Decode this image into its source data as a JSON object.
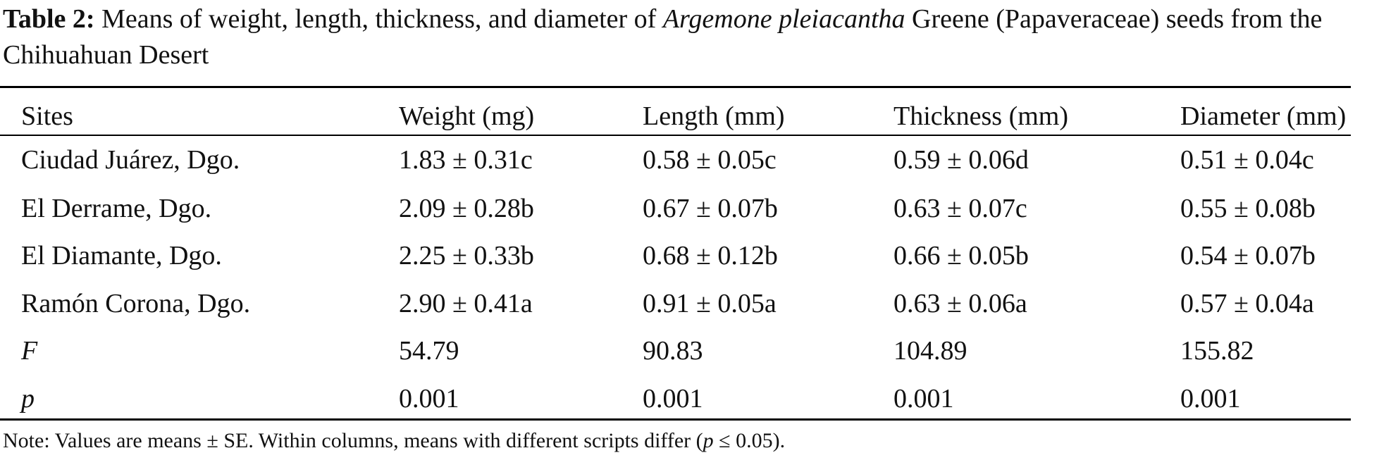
{
  "caption": {
    "label": "Table 2:",
    "text_before": "Means of weight, length, thickness, and diameter of",
    "species": "Argemone pleiacantha",
    "text_after": "Greene (Papaveraceae) seeds from the Chihuahuan Desert"
  },
  "table": {
    "headers": [
      "Sites",
      "Weight (mg)",
      "Length (mm)",
      "Thickness (mm)",
      "Diameter (mm)"
    ],
    "rows": [
      [
        "Ciudad Juárez, Dgo.",
        "1.83 ± 0.31c",
        "0.58 ± 0.05c",
        "0.59 ± 0.06d",
        "0.51 ± 0.04c"
      ],
      [
        "El Derrame, Dgo.",
        "2.09 ± 0.28b",
        "0.67 ± 0.07b",
        "0.63 ± 0.07c",
        "0.55 ± 0.08b"
      ],
      [
        "El Diamante, Dgo.",
        "2.25 ± 0.33b",
        "0.68 ± 0.12b",
        "0.66 ± 0.05b",
        "0.54 ± 0.07b"
      ],
      [
        "Ramón Corona, Dgo.",
        "2.90 ± 0.41a",
        "0.91 ± 0.05a",
        "0.63 ± 0.06a",
        "0.57 ± 0.04a"
      ],
      [
        "F",
        "54.79",
        "90.83",
        "104.89",
        "155.82"
      ],
      [
        "p",
        "0.001",
        "0.001",
        "0.001",
        "0.001"
      ]
    ]
  },
  "note": {
    "before": "Note: Values are means ± SE. Within columns, means with different scripts differ (",
    "p_symbol": "p",
    "after": " ≤ 0.05)."
  }
}
